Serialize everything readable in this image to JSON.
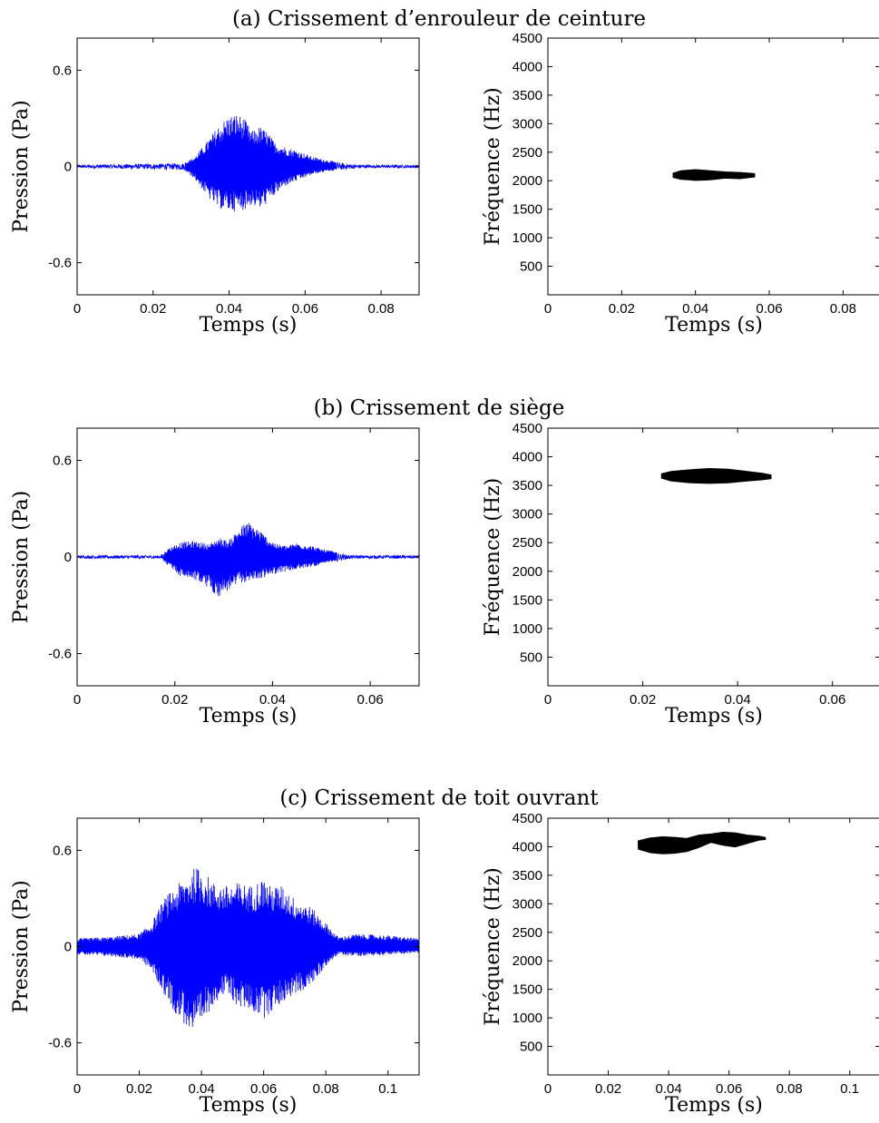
{
  "chart_data": [
    {
      "type": "line",
      "panel": "a",
      "title": "(a) Crissement d’enrouleur de ceinture",
      "xlabel": "Temps (s)",
      "ylabel": "Pression (Pa)",
      "xlim": [
        0,
        0.09
      ],
      "ylim": [
        -0.8,
        0.8
      ],
      "xticks": [
        0,
        0.02,
        0.04,
        0.06,
        0.08
      ],
      "xtick_labels": [
        "0",
        "0.02",
        "0.04",
        "0.06",
        "0.08"
      ],
      "yticks": [
        -0.6,
        0,
        0.6
      ],
      "ytick_labels": [
        "-0.6",
        "0",
        "0.6"
      ],
      "color": "#0000ff",
      "envelope": {
        "t": [
          0,
          0.028,
          0.031,
          0.034,
          0.037,
          0.04,
          0.042,
          0.044,
          0.046,
          0.048,
          0.05,
          0.052,
          0.055,
          0.058,
          0.062,
          0.066,
          0.07,
          0.075,
          0.08,
          0.09
        ],
        "upper": [
          0.01,
          0.02,
          0.06,
          0.15,
          0.25,
          0.32,
          0.33,
          0.3,
          0.22,
          0.25,
          0.22,
          0.15,
          0.12,
          0.1,
          0.06,
          0.04,
          0.02,
          0.01,
          0.01,
          0.01
        ],
        "lower": [
          -0.01,
          -0.02,
          -0.08,
          -0.18,
          -0.26,
          -0.28,
          -0.28,
          -0.27,
          -0.24,
          -0.27,
          -0.23,
          -0.18,
          -0.12,
          -0.09,
          -0.05,
          -0.03,
          -0.02,
          -0.01,
          -0.01,
          -0.01
        ]
      }
    },
    {
      "type": "spectrogram",
      "panel": "a",
      "xlabel": "Temps (s)",
      "ylabel": "Fréquence (Hz)",
      "xlim": [
        0,
        0.09
      ],
      "ylim": [
        0,
        4500
      ],
      "xticks": [
        0,
        0.02,
        0.04,
        0.06,
        0.08
      ],
      "xtick_labels": [
        "0",
        "0.02",
        "0.04",
        "0.06",
        "0.08"
      ],
      "yticks": [
        500,
        1000,
        1500,
        2000,
        2500,
        3000,
        3500,
        4000,
        4500
      ],
      "ytick_labels": [
        "500",
        "1000",
        "1500",
        "2000",
        "2500",
        "3000",
        "3500",
        "4000",
        "4500"
      ],
      "region": {
        "t": [
          0.034,
          0.036,
          0.04,
          0.044,
          0.048,
          0.052,
          0.056
        ],
        "upper": [
          2130,
          2170,
          2190,
          2170,
          2150,
          2140,
          2120
        ],
        "lower": [
          2060,
          2030,
          2010,
          2020,
          2050,
          2040,
          2070
        ]
      }
    },
    {
      "type": "line",
      "panel": "b",
      "title": "(b) Crissement de siège",
      "xlabel": "Temps (s)",
      "ylabel": "Pression (Pa)",
      "xlim": [
        0,
        0.07
      ],
      "ylim": [
        -0.8,
        0.8
      ],
      "xticks": [
        0,
        0.02,
        0.04,
        0.06
      ],
      "xtick_labels": [
        "0",
        "0.02",
        "0.04",
        "0.06"
      ],
      "yticks": [
        -0.6,
        0,
        0.6
      ],
      "ytick_labels": [
        "-0.6",
        "0",
        "0.6"
      ],
      "color": "#0000ff",
      "envelope": {
        "t": [
          0,
          0.017,
          0.019,
          0.021,
          0.024,
          0.027,
          0.029,
          0.031,
          0.033,
          0.035,
          0.037,
          0.039,
          0.041,
          0.043,
          0.045,
          0.048,
          0.05,
          0.052,
          0.054,
          0.056,
          0.07
        ],
        "upper": [
          0.01,
          0.01,
          0.06,
          0.09,
          0.1,
          0.08,
          0.12,
          0.1,
          0.18,
          0.22,
          0.18,
          0.12,
          0.08,
          0.07,
          0.09,
          0.07,
          0.05,
          0.04,
          0.02,
          0.01,
          0.01
        ],
        "lower": [
          -0.01,
          -0.01,
          -0.06,
          -0.12,
          -0.14,
          -0.2,
          -0.25,
          -0.21,
          -0.17,
          -0.15,
          -0.14,
          -0.12,
          -0.1,
          -0.09,
          -0.08,
          -0.06,
          -0.05,
          -0.03,
          -0.02,
          -0.01,
          -0.01
        ]
      }
    },
    {
      "type": "spectrogram",
      "panel": "b",
      "xlabel": "Temps (s)",
      "ylabel": "Fréquence (Hz)",
      "xlim": [
        0,
        0.07
      ],
      "ylim": [
        0,
        4500
      ],
      "xticks": [
        0,
        0.02,
        0.04,
        0.06
      ],
      "xtick_labels": [
        "0",
        "0.02",
        "0.04",
        "0.06"
      ],
      "yticks": [
        500,
        1000,
        1500,
        2000,
        2500,
        3000,
        3500,
        4000,
        4500
      ],
      "ytick_labels": [
        "500",
        "1000",
        "1500",
        "2000",
        "2500",
        "3000",
        "3500",
        "4000",
        "4500"
      ],
      "region": {
        "t": [
          0.024,
          0.026,
          0.03,
          0.034,
          0.038,
          0.042,
          0.045,
          0.047
        ],
        "upper": [
          3700,
          3740,
          3770,
          3790,
          3780,
          3740,
          3710,
          3680
        ],
        "lower": [
          3630,
          3580,
          3550,
          3540,
          3550,
          3580,
          3600,
          3620
        ]
      }
    },
    {
      "type": "line",
      "panel": "c",
      "title": "(c) Crissement de toit ouvrant",
      "xlabel": "Temps (s)",
      "ylabel": "Pression (Pa)",
      "xlim": [
        0,
        0.11
      ],
      "ylim": [
        -0.8,
        0.8
      ],
      "xticks": [
        0,
        0.02,
        0.04,
        0.06,
        0.08,
        0.1
      ],
      "xtick_labels": [
        "0",
        "0.02",
        "0.04",
        "0.06",
        "0.08",
        "0.1"
      ],
      "yticks": [
        -0.6,
        0,
        0.6
      ],
      "ytick_labels": [
        "-0.6",
        "0",
        "0.6"
      ],
      "color": "#0000ff",
      "envelope": {
        "t": [
          0,
          0.01,
          0.02,
          0.024,
          0.028,
          0.032,
          0.036,
          0.038,
          0.04,
          0.044,
          0.048,
          0.052,
          0.056,
          0.06,
          0.062,
          0.066,
          0.07,
          0.075,
          0.08,
          0.084,
          0.09,
          0.1,
          0.11
        ],
        "upper": [
          0.05,
          0.06,
          0.08,
          0.15,
          0.3,
          0.38,
          0.45,
          0.5,
          0.48,
          0.4,
          0.38,
          0.4,
          0.38,
          0.43,
          0.38,
          0.38,
          0.3,
          0.25,
          0.15,
          0.06,
          0.08,
          0.07,
          0.05
        ],
        "lower": [
          -0.05,
          -0.06,
          -0.08,
          -0.15,
          -0.3,
          -0.43,
          -0.52,
          -0.58,
          -0.5,
          -0.35,
          -0.3,
          -0.38,
          -0.4,
          -0.45,
          -0.42,
          -0.35,
          -0.3,
          -0.25,
          -0.12,
          -0.05,
          -0.06,
          -0.05,
          -0.04
        ]
      }
    },
    {
      "type": "spectrogram",
      "panel": "c",
      "xlabel": "Temps (s)",
      "ylabel": "Fréquence (Hz)",
      "xlim": [
        0,
        0.11
      ],
      "ylim": [
        0,
        4500
      ],
      "xticks": [
        0,
        0.02,
        0.04,
        0.06,
        0.08,
        0.1
      ],
      "xtick_labels": [
        "0",
        "0.02",
        "0.04",
        "0.06",
        "0.08",
        "0.1"
      ],
      "yticks": [
        500,
        1000,
        1500,
        2000,
        2500,
        3000,
        3500,
        4000,
        4500
      ],
      "ytick_labels": [
        "500",
        "1000",
        "1500",
        "2000",
        "2500",
        "3000",
        "3500",
        "4000",
        "4500"
      ],
      "region": {
        "t": [
          0.03,
          0.034,
          0.038,
          0.042,
          0.046,
          0.05,
          0.054,
          0.058,
          0.062,
          0.066,
          0.07,
          0.072
        ],
        "upper": [
          4100,
          4150,
          4170,
          4160,
          4140,
          4200,
          4220,
          4250,
          4240,
          4200,
          4180,
          4160
        ],
        "lower": [
          3960,
          3900,
          3880,
          3890,
          3920,
          3990,
          4080,
          4030,
          4000,
          4060,
          4120,
          4130
        ]
      }
    }
  ]
}
